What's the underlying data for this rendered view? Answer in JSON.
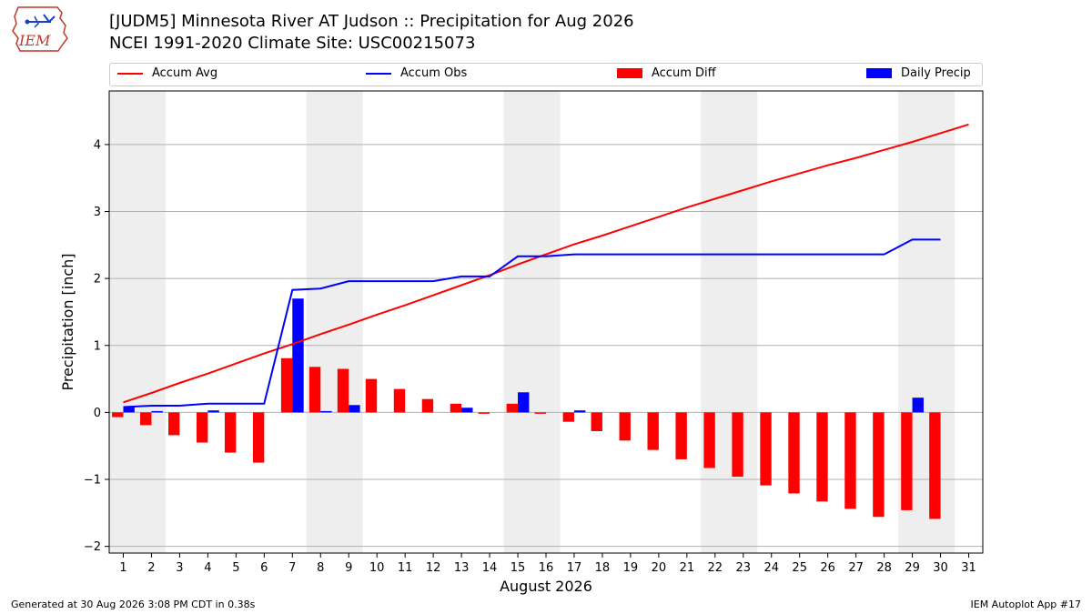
{
  "header": {
    "logo_text": "IEM",
    "title_line1": "[JUDM5] Minnesota River  AT Judson :: Precipitation for Aug 2026",
    "title_line2": "NCEI 1991-2020 Climate Site: USC00215073"
  },
  "legend": {
    "accum_avg": "Accum Avg",
    "accum_obs": "Accum Obs",
    "accum_diff": "Accum Diff",
    "daily_precip": "Daily Precip"
  },
  "footer": {
    "generated": "Generated at 30 Aug 2026 3:08 PM CDT in 0.38s",
    "app": "IEM Autoplot App #17"
  },
  "colors": {
    "avg": "#ff0000",
    "obs": "#0000ff",
    "diff": "#ff0000",
    "daily": "#0000ff",
    "weekend_shade": "#eeeeee",
    "grid": "#b0b0b0"
  },
  "chart_data": {
    "type": "bar",
    "xlabel": "August 2026",
    "ylabel": "Precipitation [inch]",
    "xlim": [
      0.5,
      31.5
    ],
    "ylim": [
      -2.1,
      4.8
    ],
    "yticks": [
      -2,
      -1,
      0,
      1,
      2,
      3,
      4
    ],
    "xticks": [
      1,
      2,
      3,
      4,
      5,
      6,
      7,
      8,
      9,
      10,
      11,
      12,
      13,
      14,
      15,
      16,
      17,
      18,
      19,
      20,
      21,
      22,
      23,
      24,
      25,
      26,
      27,
      28,
      29,
      30,
      31
    ],
    "shaded_spans": [
      [
        0.5,
        2.5
      ],
      [
        7.5,
        9.5
      ],
      [
        14.5,
        16.5
      ],
      [
        21.5,
        23.5
      ],
      [
        28.5,
        30.5
      ]
    ],
    "grid": true,
    "legend_position": "top",
    "series": [
      {
        "name": "Accum Avg",
        "kind": "line",
        "x": [
          1,
          2,
          3,
          4,
          5,
          6,
          7,
          8,
          9,
          10,
          11,
          12,
          13,
          14,
          15,
          16,
          17,
          18,
          19,
          20,
          21,
          22,
          23,
          24,
          25,
          26,
          27,
          28,
          29,
          30,
          31
        ],
        "values": [
          0.15,
          0.29,
          0.44,
          0.58,
          0.73,
          0.88,
          1.02,
          1.17,
          1.31,
          1.46,
          1.6,
          1.75,
          1.9,
          2.05,
          2.21,
          2.36,
          2.51,
          2.64,
          2.78,
          2.92,
          3.06,
          3.19,
          3.32,
          3.45,
          3.57,
          3.69,
          3.8,
          3.92,
          4.04,
          4.17,
          4.3
        ]
      },
      {
        "name": "Accum Obs",
        "kind": "line",
        "x": [
          1,
          2,
          3,
          4,
          5,
          6,
          7,
          8,
          9,
          10,
          11,
          12,
          13,
          14,
          15,
          16,
          17,
          18,
          19,
          20,
          21,
          22,
          23,
          24,
          25,
          26,
          27,
          28,
          29,
          30
        ],
        "values": [
          0.08,
          0.1,
          0.1,
          0.13,
          0.13,
          0.13,
          1.83,
          1.85,
          1.96,
          1.96,
          1.96,
          1.96,
          2.03,
          2.03,
          2.33,
          2.33,
          2.36,
          2.36,
          2.36,
          2.36,
          2.36,
          2.36,
          2.36,
          2.36,
          2.36,
          2.36,
          2.36,
          2.36,
          2.58,
          2.58
        ]
      },
      {
        "name": "Accum Diff",
        "kind": "bar",
        "x": [
          1,
          2,
          3,
          4,
          5,
          6,
          7,
          8,
          9,
          10,
          11,
          12,
          13,
          14,
          15,
          16,
          17,
          18,
          19,
          20,
          21,
          22,
          23,
          24,
          25,
          26,
          27,
          28,
          29,
          30
        ],
        "values": [
          -0.07,
          -0.19,
          -0.34,
          -0.45,
          -0.6,
          -0.75,
          0.81,
          0.68,
          0.65,
          0.5,
          0.35,
          0.2,
          0.13,
          -0.02,
          0.13,
          -0.02,
          -0.14,
          -0.28,
          -0.42,
          -0.56,
          -0.7,
          -0.83,
          -0.96,
          -1.09,
          -1.21,
          -1.33,
          -1.44,
          -1.56,
          -1.46,
          -1.59
        ]
      },
      {
        "name": "Daily Precip",
        "kind": "bar",
        "x": [
          1,
          2,
          3,
          4,
          5,
          6,
          7,
          8,
          9,
          10,
          11,
          12,
          13,
          14,
          15,
          16,
          17,
          18,
          19,
          20,
          21,
          22,
          23,
          24,
          25,
          26,
          27,
          28,
          29,
          30
        ],
        "values": [
          0.08,
          0.02,
          0,
          0.03,
          0,
          0,
          1.7,
          0.02,
          0.11,
          0,
          0,
          0,
          0.07,
          0,
          0.3,
          0,
          0.03,
          0,
          0,
          0,
          0,
          0,
          0,
          0,
          0,
          0,
          0,
          0,
          0.22,
          0
        ]
      }
    ]
  }
}
